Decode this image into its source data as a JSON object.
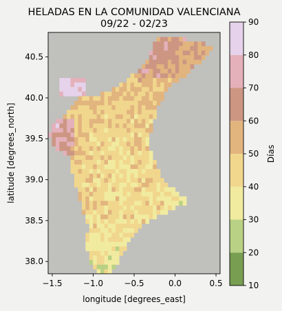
{
  "chart_data": {
    "type": "heatmap",
    "title": "HELADAS EN LA COMUNIDAD VALENCIANA",
    "subtitle": "09/22 - 02/23",
    "xlabel": "longitude [degrees_east]",
    "ylabel": "latitude [degrees_north]",
    "colorbar_label": "Días",
    "xlim": [
      -1.55,
      0.55
    ],
    "ylim": [
      37.85,
      40.8
    ],
    "x_ticks": [
      -1.5,
      -1.0,
      -0.5,
      0.0,
      0.5
    ],
    "x_tick_labels": [
      "−1.5",
      "−1.0",
      "−0.5",
      "0.0",
      "0.5"
    ],
    "y_ticks": [
      38.0,
      38.5,
      39.0,
      39.5,
      40.0,
      40.5
    ],
    "y_tick_labels": [
      "38.0",
      "38.5",
      "39.0",
      "39.5",
      "40.0",
      "40.5"
    ],
    "colorbar_ticks": [
      10,
      20,
      30,
      40,
      50,
      60,
      70,
      80,
      90
    ],
    "colorbar_tick_labels": [
      "10",
      "20",
      "30",
      "40",
      "50",
      "60",
      "70",
      "80",
      "90"
    ],
    "color_levels": [
      {
        "min": 10,
        "max": 20,
        "color": "#789e52"
      },
      {
        "min": 20,
        "max": 30,
        "color": "#b9d184"
      },
      {
        "min": 30,
        "max": 40,
        "color": "#f1eba0"
      },
      {
        "min": 40,
        "max": 50,
        "color": "#f1d78d"
      },
      {
        "min": 50,
        "max": 60,
        "color": "#e2b47e"
      },
      {
        "min": 60,
        "max": 70,
        "color": "#cc9683"
      },
      {
        "min": 70,
        "max": 80,
        "color": "#e4b0ba"
      },
      {
        "min": 80,
        "max": 90,
        "color": "#e6d2ea"
      }
    ],
    "background_color": "#c0c0bd",
    "grid": false,
    "legend": "colorbar-right"
  }
}
